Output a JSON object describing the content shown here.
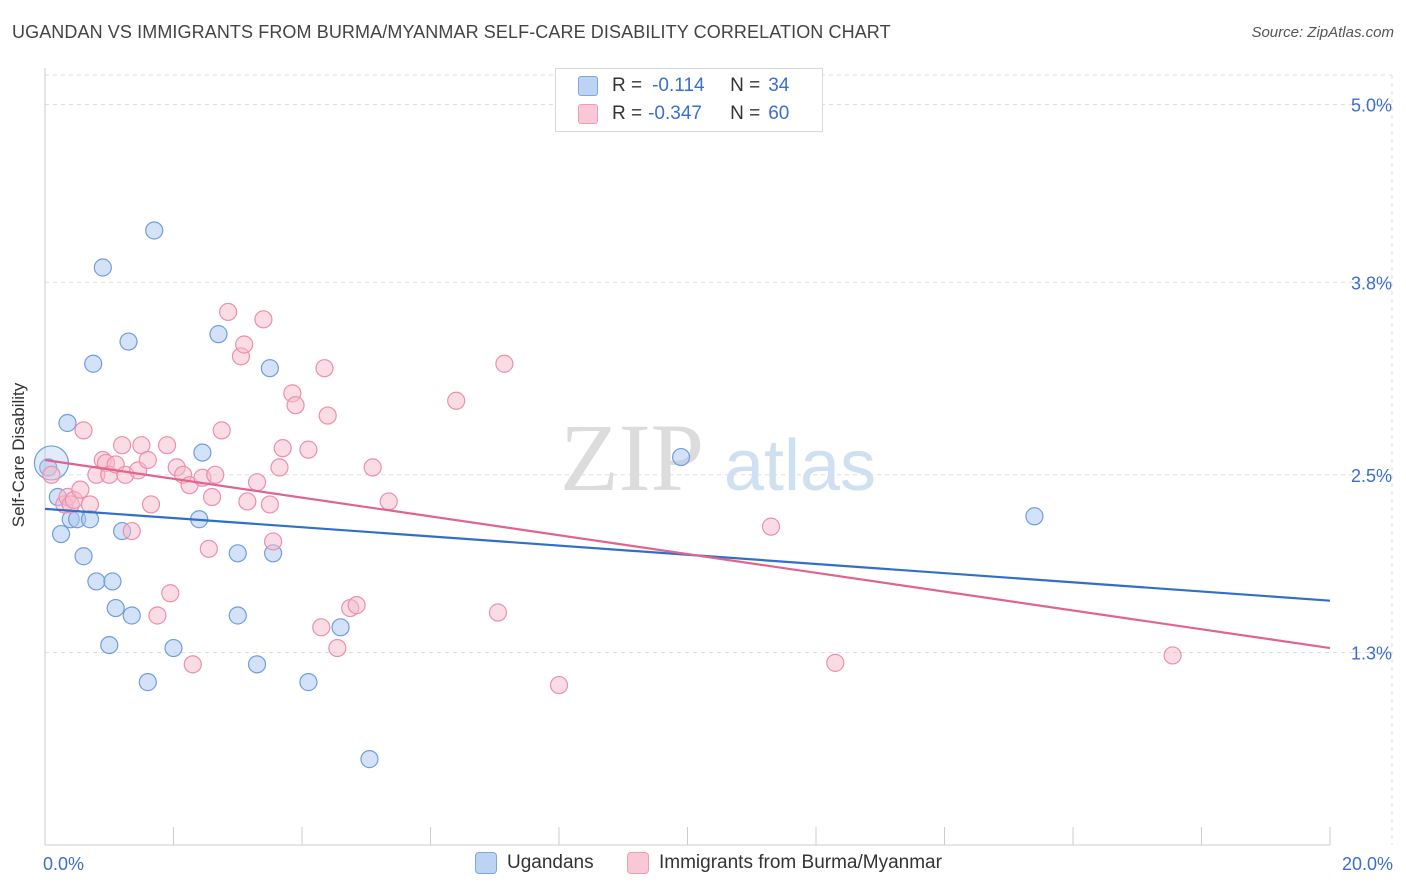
{
  "title": "UGANDAN VS IMMIGRANTS FROM BURMA/MYANMAR SELF-CARE DISABILITY CORRELATION CHART",
  "source": "Source: ZipAtlas.com",
  "watermark": {
    "zip": "ZIP",
    "atlas": "atlas"
  },
  "legend_top": {
    "rows": [
      {
        "r_label": "R =",
        "r_value": "-0.114",
        "n_label": "N =",
        "n_value": "34"
      },
      {
        "r_label": "R =",
        "r_value": "-0.347",
        "n_label": "N =",
        "n_value": "60"
      }
    ]
  },
  "colors": {
    "ugandans_fill": "#a9c6f0",
    "ugandans_stroke": "#6f9ede",
    "ugandans_line": "#2f6fcc",
    "burma_fill": "#f5b9cb",
    "burma_stroke": "#ec8fac",
    "burma_line": "#e0648f",
    "tick_label": "#3a6fd0",
    "grid": "#dddddd"
  },
  "chart_data": {
    "type": "scatter",
    "xlabel": "",
    "ylabel": "Self-Care Disability",
    "xlim": [
      0,
      20
    ],
    "ylim": [
      0,
      5.2
    ],
    "x_tick_labels": [
      "0.0%",
      "20.0%"
    ],
    "y_ticks": [
      1.3,
      2.5,
      3.8,
      5.0
    ],
    "y_tick_labels": [
      "1.3%",
      "2.5%",
      "3.8%",
      "5.0%"
    ],
    "grid": true,
    "series": [
      {
        "name": "Ugandans",
        "points": [
          [
            0.05,
            2.55
          ],
          [
            0.2,
            2.35
          ],
          [
            0.25,
            2.1
          ],
          [
            0.35,
            2.85
          ],
          [
            0.4,
            2.2
          ],
          [
            0.5,
            2.2
          ],
          [
            0.6,
            1.95
          ],
          [
            0.7,
            2.2
          ],
          [
            0.75,
            3.25
          ],
          [
            0.8,
            1.78
          ],
          [
            0.9,
            3.9
          ],
          [
            1.0,
            1.35
          ],
          [
            1.05,
            1.78
          ],
          [
            1.1,
            1.6
          ],
          [
            1.2,
            2.12
          ],
          [
            1.3,
            3.4
          ],
          [
            1.35,
            1.55
          ],
          [
            1.6,
            1.1
          ],
          [
            1.7,
            4.15
          ],
          [
            2.0,
            1.33
          ],
          [
            2.4,
            2.2
          ],
          [
            2.45,
            2.65
          ],
          [
            2.7,
            3.45
          ],
          [
            3.0,
            1.97
          ],
          [
            3.0,
            1.55
          ],
          [
            3.3,
            1.22
          ],
          [
            3.5,
            3.22
          ],
          [
            3.55,
            1.97
          ],
          [
            4.1,
            1.1
          ],
          [
            4.6,
            1.47
          ],
          [
            5.05,
            0.58
          ],
          [
            9.9,
            2.62
          ],
          [
            15.4,
            2.22
          ],
          [
            0.1,
            2.58
          ]
        ],
        "trend": {
          "x": [
            0,
            20
          ],
          "y": [
            2.27,
            1.65
          ]
        }
      },
      {
        "name": "Immigrants from Burma/Myanmar",
        "points": [
          [
            0.1,
            2.5
          ],
          [
            0.3,
            2.3
          ],
          [
            0.35,
            2.35
          ],
          [
            0.4,
            2.3
          ],
          [
            0.45,
            2.33
          ],
          [
            0.55,
            2.4
          ],
          [
            0.6,
            2.8
          ],
          [
            0.7,
            2.3
          ],
          [
            0.8,
            2.5
          ],
          [
            0.9,
            2.6
          ],
          [
            0.95,
            2.58
          ],
          [
            1.0,
            2.5
          ],
          [
            1.1,
            2.57
          ],
          [
            1.2,
            2.7
          ],
          [
            1.25,
            2.5
          ],
          [
            1.35,
            2.12
          ],
          [
            1.45,
            2.53
          ],
          [
            1.5,
            2.7
          ],
          [
            1.6,
            2.6
          ],
          [
            1.65,
            2.3
          ],
          [
            1.75,
            1.55
          ],
          [
            1.9,
            2.7
          ],
          [
            1.95,
            1.7
          ],
          [
            2.05,
            2.55
          ],
          [
            2.15,
            2.5
          ],
          [
            2.25,
            2.43
          ],
          [
            2.3,
            1.22
          ],
          [
            2.45,
            2.48
          ],
          [
            2.55,
            2.0
          ],
          [
            2.6,
            2.35
          ],
          [
            2.65,
            2.5
          ],
          [
            2.75,
            2.8
          ],
          [
            2.85,
            3.6
          ],
          [
            3.05,
            3.3
          ],
          [
            3.1,
            3.38
          ],
          [
            3.15,
            2.32
          ],
          [
            3.3,
            2.45
          ],
          [
            3.4,
            3.55
          ],
          [
            3.5,
            2.3
          ],
          [
            3.55,
            2.05
          ],
          [
            3.65,
            2.55
          ],
          [
            3.7,
            2.68
          ],
          [
            3.85,
            3.05
          ],
          [
            3.9,
            2.97
          ],
          [
            4.1,
            2.67
          ],
          [
            4.3,
            1.47
          ],
          [
            4.35,
            3.22
          ],
          [
            4.4,
            2.9
          ],
          [
            4.55,
            1.33
          ],
          [
            4.75,
            1.6
          ],
          [
            4.85,
            1.62
          ],
          [
            5.1,
            2.55
          ],
          [
            5.35,
            2.32
          ],
          [
            6.4,
            3.0
          ],
          [
            7.05,
            1.57
          ],
          [
            7.15,
            3.25
          ],
          [
            8.0,
            1.08
          ],
          [
            11.3,
            2.15
          ],
          [
            12.3,
            1.23
          ],
          [
            17.55,
            1.28
          ]
        ],
        "trend": {
          "x": [
            0,
            20
          ],
          "y": [
            2.6,
            1.33
          ]
        }
      }
    ]
  }
}
